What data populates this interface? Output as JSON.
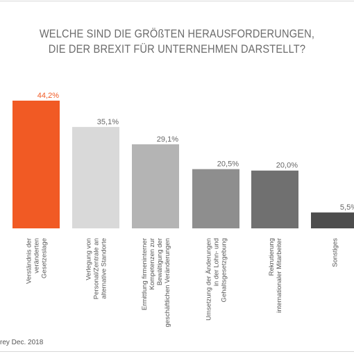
{
  "chart_data": {
    "type": "bar",
    "title_lines": [
      "WELCHE SIND DIE GRÖßTEN HERAUSFORDERUNGEN,",
      "DIE DER BREXIT FÜR UNTERNEHMEN DARSTELLT?"
    ],
    "categories": [
      [
        "Verständnis der",
        "veränderten",
        "Gesetzeslage"
      ],
      [
        "Verlegung von",
        "Personal/Zentrale an",
        "alternative Standorte"
      ],
      [
        "Ermittlung firmeninterner",
        "Kompetenzen zur",
        "Bewältigung der",
        "geschäftlichen Veränderungen"
      ],
      [
        "Umsetzung der Änderungen",
        "in der Lohn- und",
        "Gehaltsgesetzgebung"
      ],
      [
        "Rekrutierung",
        "internationaler Mitarbeiter"
      ],
      [
        "Sonstiges"
      ]
    ],
    "values": [
      44.2,
      35.1,
      29.1,
      20.5,
      20.0,
      5.5
    ],
    "value_labels": [
      "44,2%",
      "35,1%",
      "29,1%",
      "20,5%",
      "20,0%",
      "5,5%"
    ],
    "bar_colors": [
      "#f15a24",
      "#d9d9d9",
      "#b4b4b4",
      "#8e8e8e",
      "#707070",
      "#4d4d4d"
    ],
    "label_colors": [
      "#f15a24",
      "#666666",
      "#666666",
      "#666666",
      "#666666",
      "#666666"
    ],
    "ylim": [
      0,
      44.2
    ],
    "grid": false,
    "footnote": "rey Dec. 2018"
  }
}
